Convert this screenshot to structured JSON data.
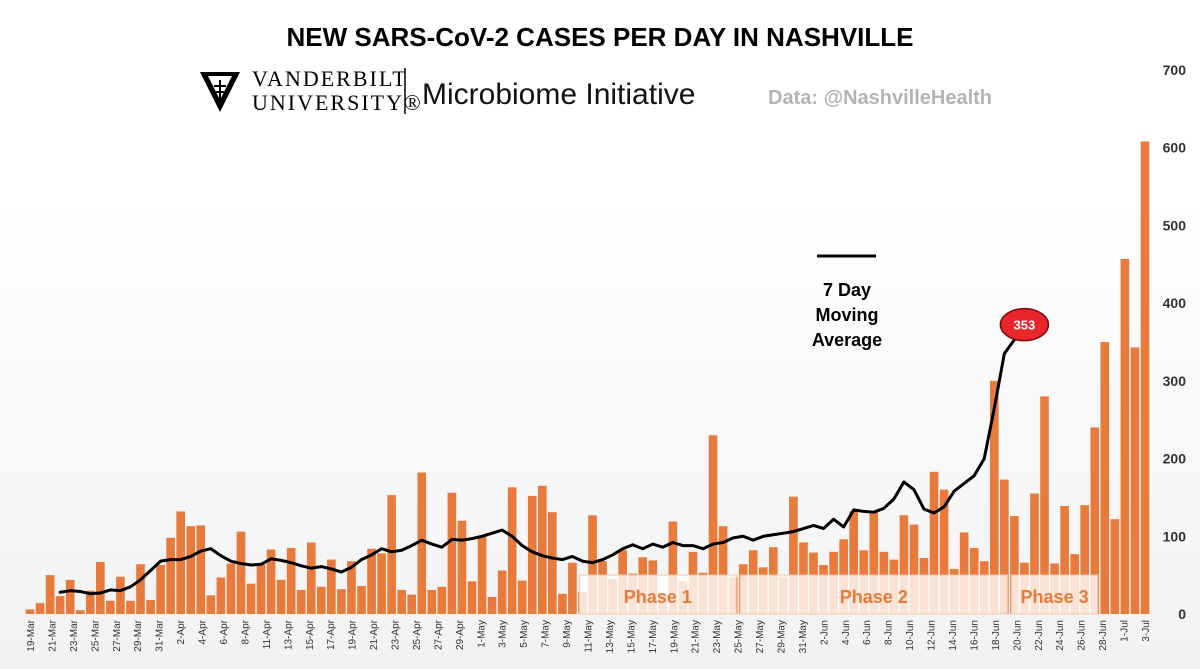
{
  "chart_data": {
    "type": "bar",
    "title": "NEW SARS-CoV-2 CASES PER DAY IN NASHVILLE",
    "source": "Data: @NashvilleHealth",
    "logo": {
      "line1": "VANDERBILT",
      "line2": "UNIVERSITY®",
      "initiative": "Microbiome Initiative"
    },
    "ylim": [
      0,
      700
    ],
    "yticks": [
      0,
      100,
      200,
      300,
      400,
      500,
      600,
      700
    ],
    "grid": false,
    "series": [
      {
        "name": "New cases",
        "color": "#e87a3c",
        "values": [
          6,
          14,
          50,
          23,
          44,
          5,
          30,
          67,
          17,
          48,
          17,
          64,
          18,
          63,
          98,
          132,
          113,
          114,
          24,
          47,
          65,
          106,
          39,
          64,
          83,
          44,
          85,
          31,
          92,
          35,
          70,
          32,
          68,
          36,
          84,
          78,
          153,
          31,
          25,
          182,
          31,
          35,
          156,
          120,
          42,
          101,
          22,
          56,
          163,
          43,
          152,
          165,
          131,
          26,
          66,
          28,
          127,
          68,
          45,
          82,
          52,
          73,
          69,
          27,
          119,
          42,
          80,
          53,
          230,
          113,
          47,
          64,
          82,
          60,
          86,
          48,
          151,
          92,
          79,
          63,
          80,
          96,
          132,
          82,
          132,
          80,
          70,
          127,
          115,
          72,
          183,
          160,
          58,
          105,
          85,
          68,
          300,
          173,
          126,
          66,
          155,
          280,
          65,
          139,
          77,
          140,
          240,
          350,
          122,
          457,
          343,
          608
        ]
      },
      {
        "name": "7 Day Moving Average",
        "color": "#000000",
        "start_index": 3,
        "values": [
          28,
          30,
          29,
          26,
          27,
          31,
          30,
          35,
          44,
          56,
          68,
          70,
          70,
          74,
          81,
          84,
          75,
          68,
          65,
          63,
          64,
          71,
          69,
          66,
          62,
          59,
          61,
          58,
          54,
          60,
          70,
          76,
          84,
          80,
          82,
          88,
          95,
          90,
          86,
          96,
          95,
          97,
          100,
          104,
          108,
          100,
          88,
          80,
          75,
          72,
          70,
          74,
          68,
          66,
          70,
          76,
          84,
          89,
          84,
          90,
          86,
          92,
          88,
          88,
          84,
          90,
          92,
          98,
          100,
          95,
          100,
          102,
          104,
          106,
          110,
          114,
          110,
          122,
          112,
          134,
          132,
          131,
          136,
          148,
          170,
          160,
          135,
          130,
          138,
          158,
          168,
          178,
          200,
          265,
          335,
          353
        ]
      }
    ],
    "callout": {
      "label": "353",
      "series": "7 Day Moving Average",
      "index": 98
    },
    "legend": {
      "line1": "7 Day",
      "line2": "Moving",
      "line3": "Average",
      "position": "center"
    },
    "phases": [
      {
        "label": "Phase 1",
        "start_index": 55,
        "end_index": 70
      },
      {
        "label": "Phase 2",
        "start_index": 71,
        "end_index": 97
      },
      {
        "label": "Phase 3",
        "start_index": 98,
        "end_index": 106
      }
    ],
    "x_tick_labels": [
      "19-Mar",
      "21-Mar",
      "23-Mar",
      "25-Mar",
      "27-Mar",
      "29-Mar",
      "31-Mar",
      "2-Apr",
      "4-Apr",
      "6-Apr",
      "8-Apr",
      "11-Apr",
      "13-Apr",
      "15-Apr",
      "17-Apr",
      "19-Apr",
      "21-Apr",
      "23-Apr",
      "25-Apr",
      "27-Apr",
      "29-Apr",
      "1-May",
      "3-May",
      "5-May",
      "7-May",
      "9-May",
      "11-May",
      "13-May",
      "15-May",
      "17-May",
      "19-May",
      "21-May",
      "23-May",
      "25-May",
      "27-May",
      "29-May",
      "31-May",
      "2-Jun",
      "4-Jun",
      "6-Jun",
      "8-Jun",
      "10-Jun",
      "12-Jun",
      "14-Jun",
      "16-Jun",
      "18-Jun",
      "20-Jun",
      "22-Jun",
      "24-Jun",
      "26-Jun",
      "28-Jun",
      "1-Jul",
      "3-Jul"
    ]
  }
}
